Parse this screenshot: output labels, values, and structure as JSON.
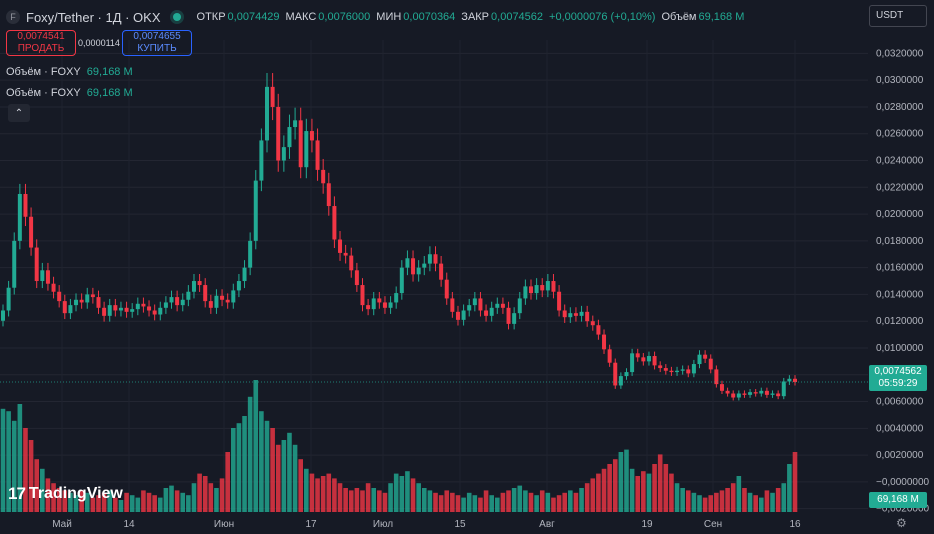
{
  "header": {
    "symbol_icon": "F",
    "symbol_title": "Foxy/Tether · 1Д · OKX",
    "ohlc": [
      {
        "key": "ОТКР",
        "value": "0,0074429"
      },
      {
        "key": "МАКС",
        "value": "0,0076000"
      },
      {
        "key": "МИН",
        "value": "0,0070364"
      },
      {
        "key": "ЗАКР",
        "value": "0,0074562"
      }
    ],
    "change": "+0,0000076 (+0,10%)",
    "volume_label": "Объём",
    "volume_value": "69,168 M"
  },
  "trade": {
    "sell_price": "0,0074541",
    "sell_label": "ПРОДАТЬ",
    "spread": "0,0000114",
    "buy_price": "0,0074655",
    "buy_label": "КУПИТЬ"
  },
  "legend": [
    {
      "label": "Объём · FOXY",
      "value": "69,168 M"
    },
    {
      "label": "Объём · FOXY",
      "value": "69,168 M"
    }
  ],
  "collapse_icon": "chevron-up-icon",
  "currency_select": "USDT",
  "price_tag": {
    "price": "0,0074562",
    "countdown": "05:59:29"
  },
  "volume_tag": "69,168 M",
  "branding": {
    "logo_mark": "17",
    "logo_text": "TradingView"
  },
  "colors": {
    "up": "#22ab94",
    "down": "#f23645",
    "background": "#161a25"
  },
  "chart_data": {
    "type": "candlestick",
    "y_axis_labels": [
      "0,0320000",
      "0,0300000",
      "0,0280000",
      "0,0260000",
      "0,0240000",
      "0,0220000",
      "0,0200000",
      "0,0180000",
      "0,0160000",
      "0,0140000",
      "0,0120000",
      "0,0100000",
      "0,0080000",
      "0,0060000",
      "0,0040000",
      "0,0020000",
      "−0,0000000",
      "−0,0020000"
    ],
    "x_axis_labels": [
      "Май",
      "14",
      "Июн",
      "17",
      "Июл",
      "15",
      "Авг",
      "19",
      "Сен",
      "16"
    ],
    "ylim": [
      -0.0021,
      0.033
    ],
    "last_price": 0.0074562,
    "closes": [
      0.0128,
      0.0145,
      0.018,
      0.0215,
      0.0198,
      0.0175,
      0.015,
      0.0158,
      0.0148,
      0.0142,
      0.0135,
      0.0126,
      0.0132,
      0.0136,
      0.0134,
      0.014,
      0.0138,
      0.013,
      0.0124,
      0.0132,
      0.0128,
      0.013,
      0.0127,
      0.0129,
      0.0133,
      0.0131,
      0.0128,
      0.0125,
      0.013,
      0.0134,
      0.0138,
      0.0132,
      0.0136,
      0.0142,
      0.015,
      0.0147,
      0.0135,
      0.013,
      0.0139,
      0.0136,
      0.0134,
      0.0143,
      0.015,
      0.016,
      0.018,
      0.0225,
      0.0255,
      0.0295,
      0.028,
      0.024,
      0.025,
      0.0265,
      0.027,
      0.0235,
      0.0262,
      0.0255,
      0.0233,
      0.0223,
      0.0206,
      0.0181,
      0.0171,
      0.0169,
      0.0158,
      0.0147,
      0.0132,
      0.0129,
      0.0137,
      0.0134,
      0.013,
      0.0134,
      0.0141,
      0.016,
      0.0167,
      0.0155,
      0.016,
      0.0163,
      0.017,
      0.0163,
      0.0151,
      0.0137,
      0.0127,
      0.0121,
      0.0128,
      0.0132,
      0.0137,
      0.0128,
      0.0124,
      0.013,
      0.0133,
      0.013,
      0.0118,
      0.0126,
      0.0137,
      0.0146,
      0.0141,
      0.0147,
      0.0143,
      0.015,
      0.0142,
      0.0128,
      0.0123,
      0.0126,
      0.0124,
      0.0127,
      0.012,
      0.0117,
      0.011,
      0.0099,
      0.0089,
      0.0072,
      0.0079,
      0.0082,
      0.0096,
      0.0093,
      0.009,
      0.0094,
      0.0087,
      0.0085,
      0.0083,
      0.0082,
      0.0083,
      0.0084,
      0.0081,
      0.0088,
      0.0095,
      0.0092,
      0.0084,
      0.0073,
      0.0068,
      0.0066,
      0.0063,
      0.0066,
      0.0065,
      0.0067,
      0.0066,
      0.0068,
      0.0065,
      0.0066,
      0.0064,
      0.0075,
      0.0077,
      0.0074562
    ],
    "volumes": [
      0.0043,
      0.0042,
      0.0038,
      0.0045,
      0.0035,
      0.003,
      0.0022,
      0.0018,
      0.0014,
      0.0012,
      0.001,
      0.0009,
      0.0008,
      0.0007,
      0.0009,
      0.0008,
      0.0006,
      0.0007,
      0.0008,
      0.0009,
      0.0006,
      0.0005,
      0.0008,
      0.0007,
      0.0006,
      0.0009,
      0.0008,
      0.0007,
      0.0006,
      0.001,
      0.0011,
      0.0009,
      0.0008,
      0.0007,
      0.0012,
      0.0016,
      0.0015,
      0.0012,
      0.001,
      0.0014,
      0.0025,
      0.0035,
      0.0037,
      0.004,
      0.0048,
      0.0055,
      0.0042,
      0.0038,
      0.0035,
      0.0028,
      0.003,
      0.0033,
      0.0028,
      0.0022,
      0.0018,
      0.0016,
      0.0014,
      0.0015,
      0.0016,
      0.0014,
      0.0012,
      0.001,
      0.0009,
      0.001,
      0.0009,
      0.0012,
      0.001,
      0.0009,
      0.0008,
      0.0012,
      0.0016,
      0.0015,
      0.0017,
      0.0014,
      0.0012,
      0.001,
      0.0009,
      0.0008,
      0.0007,
      0.0009,
      0.0008,
      0.0007,
      0.0006,
      0.0008,
      0.0007,
      0.0006,
      0.0009,
      0.0007,
      0.0006,
      0.0008,
      0.0009,
      0.001,
      0.0011,
      0.0009,
      0.0008,
      0.0007,
      0.0009,
      0.0008,
      0.0006,
      0.0007,
      0.0008,
      0.0009,
      0.0008,
      0.001,
      0.0012,
      0.0014,
      0.0016,
      0.0018,
      0.002,
      0.0022,
      0.0025,
      0.0026,
      0.0018,
      0.0015,
      0.0017,
      0.0016,
      0.002,
      0.0024,
      0.002,
      0.0016,
      0.0012,
      0.001,
      0.0009,
      0.0008,
      0.0007,
      0.0006,
      0.0007,
      0.0008,
      0.0009,
      0.001,
      0.0012,
      0.0015,
      0.001,
      0.0008,
      0.0007,
      0.0006,
      0.0009,
      0.0008,
      0.001,
      0.0012,
      0.002,
      0.0025,
      0.0014,
      0.001
    ]
  }
}
